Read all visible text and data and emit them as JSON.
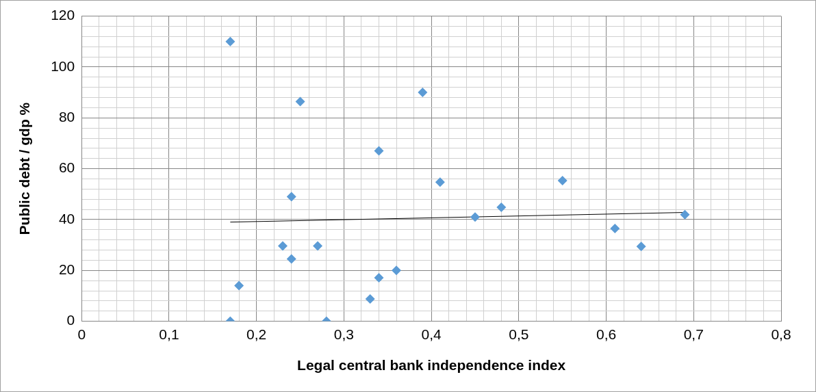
{
  "chart_data": {
    "type": "scatter",
    "xlabel": "Legal central bank independence index",
    "ylabel": "Public debt / gdp %",
    "series": [
      {
        "color": "#5b9bd5",
        "marker": "diamond",
        "x": [
          0.17,
          0.25,
          0.39,
          0.34,
          0.24,
          0.41,
          0.55,
          0.48,
          0.45,
          0.69,
          0.61,
          0.64,
          0.23,
          0.27,
          0.24,
          0.36,
          0.34,
          0.18,
          0.33,
          0.17,
          0.28
        ],
        "values": [
          110,
          86.4,
          90,
          67,
          49,
          54.7,
          55.3,
          44.8,
          41,
          41.9,
          36.5,
          29.4,
          29.6,
          29.6,
          24.5,
          20,
          17.1,
          14,
          8.8,
          0,
          0
        ]
      },
      {
        "type": "line",
        "marker": "none",
        "color": "#000000",
        "x": [
          0.17,
          0.69
        ],
        "values": [
          39,
          42.8
        ]
      }
    ],
    "grid": true,
    "xlim": [
      0,
      0.8
    ],
    "ylim": [
      0,
      120
    ],
    "xticks": [
      0,
      {
        "value": 0.02,
        "label": null
      },
      {
        "value": 0.04,
        "label": null
      },
      {
        "value": 0.06,
        "label": null
      },
      {
        "value": 0.08,
        "label": null
      },
      {
        "value": 0.1,
        "label": "0,1"
      },
      {
        "value": 0.12,
        "label": null
      },
      {
        "value": 0.14,
        "label": null
      },
      {
        "value": 0.16,
        "label": null
      },
      {
        "value": 0.18,
        "label": null
      },
      {
        "value": 0.2,
        "label": "0,2"
      },
      {
        "value": 0.22,
        "label": null
      },
      {
        "value": 0.24,
        "label": null
      },
      {
        "value": 0.26,
        "label": null
      },
      {
        "value": 0.28,
        "label": null
      },
      {
        "value": 0.3,
        "label": "0,3"
      },
      {
        "value": 0.32,
        "label": null
      },
      {
        "value": 0.34,
        "label": null
      },
      {
        "value": 0.36,
        "label": null
      },
      {
        "value": 0.38,
        "label": null
      },
      {
        "value": 0.4,
        "label": "0,4"
      },
      {
        "value": 0.42,
        "label": null
      },
      {
        "value": 0.44,
        "label": null
      },
      {
        "value": 0.46,
        "label": null
      },
      {
        "value": 0.48,
        "label": null
      },
      {
        "value": 0.5,
        "label": "0,5"
      },
      {
        "value": 0.52,
        "label": null
      },
      {
        "value": 0.54,
        "label": null
      },
      {
        "value": 0.56,
        "label": null
      },
      {
        "value": 0.58,
        "label": null
      },
      {
        "value": 0.6,
        "label": "0,6"
      },
      {
        "value": 0.62,
        "label": null
      },
      {
        "value": 0.64,
        "label": null
      },
      {
        "value": 0.66,
        "label": null
      },
      {
        "value": 0.68,
        "label": null
      },
      {
        "value": 0.7,
        "label": "0,7"
      },
      {
        "value": 0.72,
        "label": null
      },
      {
        "value": 0.74,
        "label": null
      },
      {
        "value": 0.76,
        "label": null
      },
      {
        "value": 0.78,
        "label": null
      },
      {
        "value": 0.8,
        "label": "0,8"
      }
    ],
    "yticks": [
      0,
      {
        "value": 4,
        "label": null
      },
      {
        "value": 8,
        "label": null
      },
      {
        "value": 12,
        "label": null
      },
      {
        "value": 16,
        "label": null
      },
      20,
      {
        "value": 24,
        "label": null
      },
      {
        "value": 28,
        "label": null
      },
      {
        "value": 32,
        "label": null
      },
      {
        "value": 36,
        "label": null
      },
      40,
      {
        "value": 44,
        "label": null
      },
      {
        "value": 48,
        "label": null
      },
      {
        "value": 52,
        "label": null
      },
      {
        "value": 56,
        "label": null
      },
      60,
      {
        "value": 64,
        "label": null
      },
      {
        "value": 68,
        "label": null
      },
      {
        "value": 72,
        "label": null
      },
      {
        "value": 76,
        "label": null
      },
      80,
      {
        "value": 84,
        "label": null
      },
      {
        "value": 88,
        "label": null
      },
      {
        "value": 92,
        "label": null
      },
      {
        "value": 96,
        "label": null
      },
      100,
      {
        "value": 104,
        "label": null
      },
      {
        "value": 108,
        "label": null
      },
      {
        "value": 112,
        "label": null
      },
      {
        "value": 116,
        "label": null
      },
      120
    ]
  }
}
